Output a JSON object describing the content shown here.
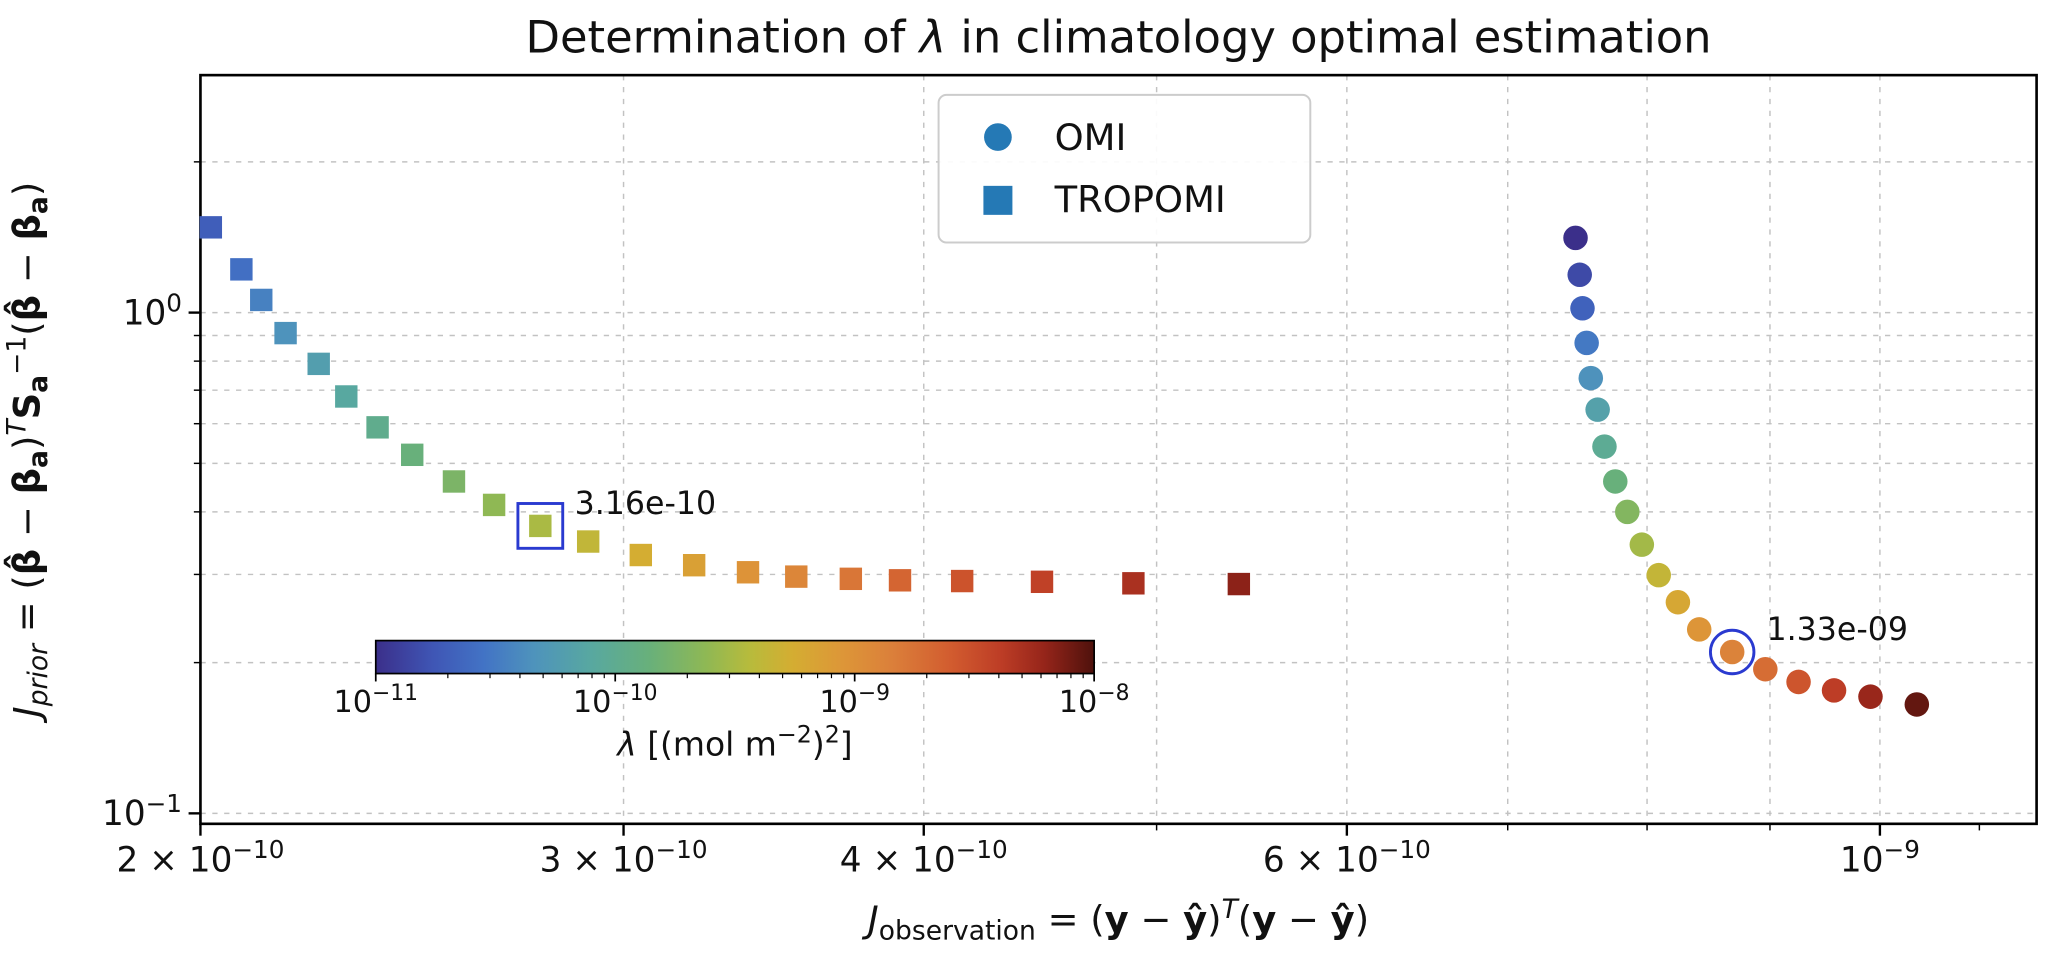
{
  "figure": {
    "background": "#ffffff"
  },
  "chart_data": {
    "type": "scatter",
    "title_parts": [
      {
        "t": "Determination of ",
        "style": ""
      },
      {
        "t": "λ",
        "style": "italic"
      },
      {
        "t": " in climatology optimal estimation",
        "style": ""
      }
    ],
    "xlabel_parts": [
      {
        "t": "J",
        "style": "italic"
      },
      {
        "t": "observation",
        "style": "sub"
      },
      {
        "t": " = (",
        "style": ""
      },
      {
        "t": "y",
        "style": "bold"
      },
      {
        "t": " − ",
        "style": ""
      },
      {
        "t": "ŷ",
        "style": "bold"
      },
      {
        "t": ")",
        "style": ""
      },
      {
        "t": "T",
        "style": "sup italic"
      },
      {
        "t": "(",
        "style": ""
      },
      {
        "t": "y",
        "style": "bold"
      },
      {
        "t": " − ",
        "style": ""
      },
      {
        "t": "ŷ",
        "style": "bold"
      },
      {
        "t": ")",
        "style": ""
      }
    ],
    "ylabel_parts": [
      {
        "t": "J",
        "style": "italic"
      },
      {
        "t": "prior",
        "style": "sub italic"
      },
      {
        "t": " = (",
        "style": ""
      },
      {
        "t": "β̂",
        "style": "bold"
      },
      {
        "t": " − ",
        "style": ""
      },
      {
        "t": "β",
        "style": "bold"
      },
      {
        "t": "a",
        "style": "sub bold"
      },
      {
        "t": ")",
        "style": ""
      },
      {
        "t": "T",
        "style": "sup italic"
      },
      {
        "t": "S",
        "style": "bold"
      },
      {
        "t": "a",
        "style": "sub bold"
      },
      {
        "t": "−1",
        "style": "sup"
      },
      {
        "t": "(",
        "style": ""
      },
      {
        "t": "β̂",
        "style": "bold"
      },
      {
        "t": " − ",
        "style": ""
      },
      {
        "t": "β",
        "style": "bold"
      },
      {
        "t": "a",
        "style": "sub bold"
      },
      {
        "t": ")",
        "style": ""
      }
    ],
    "axes": {
      "xscale": "log",
      "yscale": "log",
      "xlim": [
        2e-10,
        1.162e-09
      ],
      "ylim": [
        0.0953,
        2.98
      ]
    },
    "x_ticks": [
      {
        "v": 2e-10,
        "base": "2 × 10",
        "sup": "−10"
      },
      {
        "v": 3e-10,
        "base": "3 × 10",
        "sup": "−10"
      },
      {
        "v": 4e-10,
        "base": "4 × 10",
        "sup": "−10"
      },
      {
        "v": 6e-10,
        "base": "6 × 10",
        "sup": "−10"
      },
      {
        "v": 1e-09,
        "base": "10",
        "sup": "−9"
      }
    ],
    "x_minor_ticks": [
      5e-10,
      7e-10,
      8e-10,
      9e-10,
      1.1e-09
    ],
    "y_ticks": [
      {
        "v": 1.0,
        "base": "10",
        "sup": "0"
      },
      {
        "v": 0.1,
        "base": "10",
        "sup": "−1"
      }
    ],
    "y_minor_ticks": [
      0.2,
      0.3,
      0.4,
      0.5,
      0.6,
      0.7,
      0.8,
      0.9,
      2.0
    ],
    "x_grid": [
      3e-10,
      4e-10,
      5e-10,
      6e-10,
      7e-10,
      8e-10,
      9e-10,
      1e-09
    ],
    "y_grid": [
      0.1,
      0.2,
      0.3,
      0.4,
      0.5,
      0.6,
      0.7,
      0.8,
      0.9,
      1.0,
      2.0
    ],
    "grid": {
      "color": "#c2c2c2",
      "dash": "4 5"
    },
    "legend": {
      "marker_color": "#2579b5",
      "entries": [
        {
          "label": "OMI",
          "marker": "circle"
        },
        {
          "label": "TROPOMI",
          "marker": "square"
        }
      ]
    },
    "colorbar": {
      "min": 1e-11,
      "max": 1e-08,
      "ticks": [
        {
          "v": 1e-11,
          "base": "10",
          "sup": "−11"
        },
        {
          "v": 1e-10,
          "base": "10",
          "sup": "−10"
        },
        {
          "v": 1e-09,
          "base": "10",
          "sup": "−9"
        },
        {
          "v": 1e-08,
          "base": "10",
          "sup": "−8"
        }
      ],
      "label_parts": [
        {
          "t": "λ",
          "style": "italic"
        },
        {
          "t": " [(mol m",
          "style": ""
        },
        {
          "t": "−2",
          "style": "sup"
        },
        {
          "t": ")",
          "style": ""
        },
        {
          "t": "2",
          "style": "sup"
        },
        {
          "t": "]",
          "style": ""
        }
      ]
    },
    "colormap": [
      [
        0.0,
        "#3b2f8a"
      ],
      [
        0.08,
        "#3f56b5"
      ],
      [
        0.15,
        "#4273c5"
      ],
      [
        0.22,
        "#4e93bc"
      ],
      [
        0.3,
        "#58a8a0"
      ],
      [
        0.38,
        "#68b07b"
      ],
      [
        0.46,
        "#8fb854"
      ],
      [
        0.52,
        "#b7bb3c"
      ],
      [
        0.58,
        "#d4ad32"
      ],
      [
        0.65,
        "#dd9638"
      ],
      [
        0.72,
        "#db7f3a"
      ],
      [
        0.8,
        "#d25c2f"
      ],
      [
        0.87,
        "#bd3d26"
      ],
      [
        0.93,
        "#96251a"
      ],
      [
        1.0,
        "#4e110c"
      ]
    ],
    "highlight_color": "#2a3ad0",
    "series": [
      {
        "name": "OMI",
        "marker": "circle",
        "points": [
          [
            7.47e-10,
            1.41,
            1e-11
          ],
          [
            7.5e-10,
            1.19,
            1.46e-11
          ],
          [
            7.52e-10,
            1.02,
            2.12e-11
          ],
          [
            7.55e-10,
            0.87,
            3.09e-11
          ],
          [
            7.58e-10,
            0.74,
            4.5e-11
          ],
          [
            7.63e-10,
            0.64,
            6.55e-11
          ],
          [
            7.68e-10,
            0.54,
            9.54e-11
          ],
          [
            7.76e-10,
            0.46,
            1.39e-10
          ],
          [
            7.85e-10,
            0.4,
            2.02e-10
          ],
          [
            7.96e-10,
            0.344,
            2.94e-10
          ],
          [
            8.09e-10,
            0.299,
            4.28e-10
          ],
          [
            8.24e-10,
            0.264,
            6.24e-10
          ],
          [
            8.41e-10,
            0.233,
            9.08e-10
          ],
          [
            8.68e-10,
            0.21,
            1.33e-09
          ],
          [
            8.96e-10,
            0.194,
            1.93e-09
          ],
          [
            9.25e-10,
            0.183,
            2.81e-09
          ],
          [
            9.57e-10,
            0.176,
            4.09e-09
          ],
          [
            9.91e-10,
            0.171,
            5.95e-09
          ],
          [
            1.036e-09,
            0.165,
            8.67e-09
          ]
        ]
      },
      {
        "name": "TROPOMI",
        "marker": "square",
        "points": [
          [
            2.02e-10,
            1.48,
            2e-11
          ],
          [
            2.08e-10,
            1.22,
            2.63e-11
          ],
          [
            2.12e-10,
            1.06,
            3.47e-11
          ],
          [
            2.17e-10,
            0.91,
            4.57e-11
          ],
          [
            2.24e-10,
            0.79,
            6.03e-11
          ],
          [
            2.3e-10,
            0.68,
            7.94e-11
          ],
          [
            2.37e-10,
            0.59,
            1.05e-10
          ],
          [
            2.45e-10,
            0.52,
            1.38e-10
          ],
          [
            2.55e-10,
            0.46,
            1.82e-10
          ],
          [
            2.65e-10,
            0.413,
            2.4e-10
          ],
          [
            2.77e-10,
            0.375,
            3.16e-10
          ],
          [
            2.9e-10,
            0.349,
            4.17e-10
          ],
          [
            3.05e-10,
            0.328,
            5.5e-10
          ],
          [
            3.21e-10,
            0.313,
            7.24e-10
          ],
          [
            3.38e-10,
            0.303,
            9.55e-10
          ],
          [
            3.54e-10,
            0.297,
            1.26e-09
          ],
          [
            3.73e-10,
            0.294,
            1.66e-09
          ],
          [
            3.91e-10,
            0.292,
            2.19e-09
          ],
          [
            4.15e-10,
            0.291,
            2.88e-09
          ],
          [
            4.48e-10,
            0.29,
            3.8e-09
          ],
          [
            4.89e-10,
            0.288,
            5.01e-09
          ],
          [
            5.41e-10,
            0.287,
            6.61e-09
          ]
        ]
      }
    ],
    "annotations": [
      {
        "series": "TROPOMI",
        "index": 10,
        "label": "3.16e-10",
        "shape": "square"
      },
      {
        "series": "OMI",
        "index": 13,
        "label": "1.33e-09",
        "shape": "circle"
      }
    ]
  }
}
